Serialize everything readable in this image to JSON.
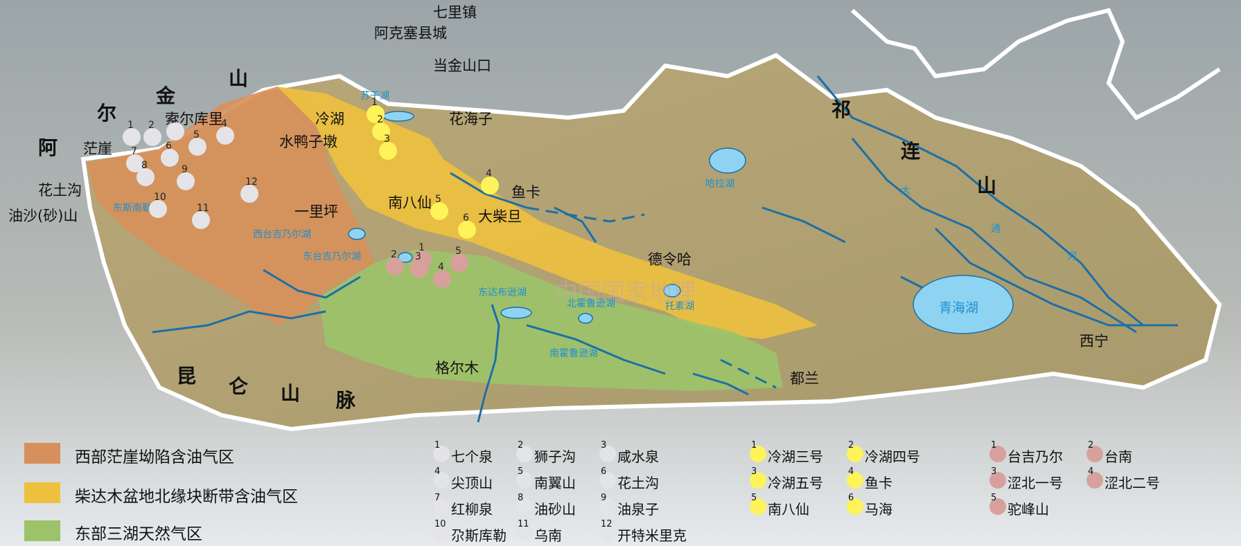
{
  "colors": {
    "west": "#d7905b",
    "north": "#edc13e",
    "east": "#9cc36a",
    "gray_dot": "#e4e4e8",
    "yellow_dot": "#fff35a",
    "pink_dot": "#d8a09c",
    "water": "#8fd3f2",
    "river": "#1c6fa6"
  },
  "places": {
    "qilizhen": "七里镇",
    "akesai": "阿克塞县城",
    "dangjin": "当金山口",
    "huahaizi": "花海子",
    "suoerkuli": "索尔库里",
    "mangya": "茫崖",
    "huatugou": "花土沟",
    "youshashan": "油沙(砂)山",
    "lenghu": "冷湖",
    "shuiyazidun": "水鸭子墩",
    "yiliping": "一里坪",
    "nanbaxian": "南八仙",
    "yuka": "鱼卡",
    "dachaidan": "大柴旦",
    "delingha": "德令哈",
    "geermu": "格尔木",
    "dulan": "都兰",
    "xining": "西宁"
  },
  "mountains": {
    "altun": [
      "阿",
      "尔",
      "金",
      "山"
    ],
    "qilian": [
      "祁",
      "连",
      "山"
    ],
    "kunlun": [
      "昆",
      "仑",
      "山",
      "脉"
    ]
  },
  "water_bodies": {
    "sugan": "苏干湖",
    "hala": "哈拉湖",
    "dongsina": "东斯南勒湖",
    "xitaiji": "西台吉乃尔湖",
    "dongtaiji": "东台吉乃尔湖",
    "dongdabu": "东达布逊湖",
    "beihuo": "北霍鲁逊湖",
    "tuosu": "托素湖",
    "nanhuo": "南霍鲁逊湖",
    "qinghai": "青海湖",
    "datong_1": "大",
    "datong_2": "通",
    "datong_3": "河"
  },
  "watermark": "中国国家地理",
  "field_numbers": {
    "gray": [
      "1",
      "2",
      "3",
      "4",
      "5",
      "6",
      "7",
      "8",
      "9",
      "10",
      "11",
      "12"
    ],
    "yellow": [
      "1",
      "2",
      "3",
      "4",
      "5",
      "6"
    ],
    "pink": [
      "1",
      "2",
      "3",
      "4",
      "5"
    ]
  },
  "legend": {
    "west": "西部茫崖坳陷含油气区",
    "north": "柴达木盆地北缘块断带含油气区",
    "east": "东部三湖天然气区",
    "gray_fields": [
      {
        "n": "1",
        "name": "七个泉"
      },
      {
        "n": "2",
        "name": "狮子沟"
      },
      {
        "n": "3",
        "name": "咸水泉"
      },
      {
        "n": "4",
        "name": "尖顶山"
      },
      {
        "n": "5",
        "name": "南翼山"
      },
      {
        "n": "6",
        "name": "花土沟"
      },
      {
        "n": "7",
        "name": "红柳泉"
      },
      {
        "n": "8",
        "name": "油砂山"
      },
      {
        "n": "9",
        "name": "油泉子"
      },
      {
        "n": "10",
        "name": "尕斯库勒"
      },
      {
        "n": "11",
        "name": "乌南"
      },
      {
        "n": "12",
        "name": "开特米里克"
      }
    ],
    "yellow_fields": [
      {
        "n": "1",
        "name": "冷湖三号"
      },
      {
        "n": "2",
        "name": "冷湖四号"
      },
      {
        "n": "3",
        "name": "冷湖五号"
      },
      {
        "n": "4",
        "name": "鱼卡"
      },
      {
        "n": "5",
        "name": "南八仙"
      },
      {
        "n": "6",
        "name": "马海"
      }
    ],
    "pink_fields": [
      {
        "n": "1",
        "name": "台吉乃尔"
      },
      {
        "n": "2",
        "name": "台南"
      },
      {
        "n": "3",
        "name": "涩北一号"
      },
      {
        "n": "4",
        "name": "涩北二号"
      },
      {
        "n": "5",
        "name": "驼峰山"
      }
    ]
  }
}
